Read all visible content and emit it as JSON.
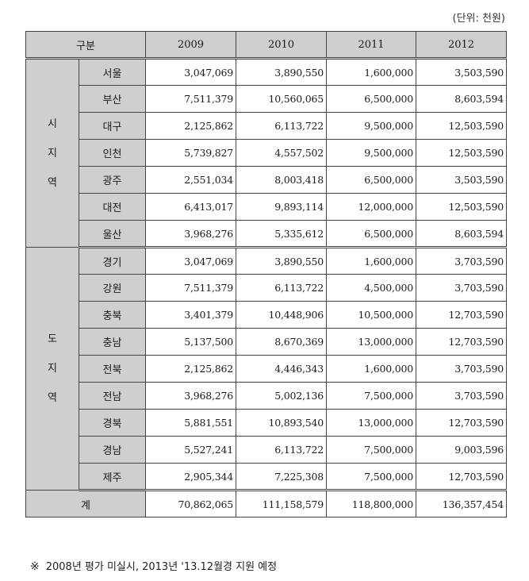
{
  "unit_label": "(단위: 천원)",
  "header": {
    "category": "구분",
    "years": [
      "2009",
      "2010",
      "2011",
      "2012"
    ]
  },
  "groups": [
    {
      "label": "시\n지\n역",
      "rows": [
        {
          "name": "서울",
          "values": [
            "3,047,069",
            "3,890,550",
            "1,600,000",
            "3,503,590"
          ]
        },
        {
          "name": "부산",
          "values": [
            "7,511,379",
            "10,560,065",
            "6,500,000",
            "8,603,594"
          ]
        },
        {
          "name": "대구",
          "values": [
            "2,125,862",
            "6,113,722",
            "9,500,000",
            "12,503,590"
          ]
        },
        {
          "name": "인천",
          "values": [
            "5,739,827",
            "4,557,502",
            "9,500,000",
            "12,503,590"
          ]
        },
        {
          "name": "광주",
          "values": [
            "2,551,034",
            "8,003,418",
            "6,500,000",
            "3,503,590"
          ]
        },
        {
          "name": "대전",
          "values": [
            "6,413,017",
            "9,893,114",
            "12,000,000",
            "12,503,590"
          ]
        },
        {
          "name": "울산",
          "values": [
            "3,968,276",
            "5,335,612",
            "6,500,000",
            "8,603,594"
          ]
        }
      ]
    },
    {
      "label": "도\n지\n역",
      "rows": [
        {
          "name": "경기",
          "values": [
            "3,047,069",
            "3,890,550",
            "1,600,000",
            "3,703,590"
          ]
        },
        {
          "name": "강원",
          "values": [
            "7,511,379",
            "6,113,722",
            "4,500,000",
            "3,703,590"
          ]
        },
        {
          "name": "충북",
          "values": [
            "3,401,379",
            "10,448,906",
            "10,500,000",
            "12,703,590"
          ]
        },
        {
          "name": "충남",
          "values": [
            "5,137,500",
            "8,670,369",
            "13,000,000",
            "12,703,590"
          ]
        },
        {
          "name": "전북",
          "values": [
            "2,125,862",
            "4,446,343",
            "1,600,000",
            "3,703,590"
          ]
        },
        {
          "name": "전남",
          "values": [
            "3,968,276",
            "5,002,136",
            "7,500,000",
            "3,703,590"
          ]
        },
        {
          "name": "경북",
          "values": [
            "5,881,551",
            "10,893,540",
            "13,000,000",
            "12,703,590"
          ]
        },
        {
          "name": "경남",
          "values": [
            "5,527,241",
            "6,113,722",
            "7,500,000",
            "9,003,596"
          ]
        },
        {
          "name": "제주",
          "values": [
            "2,905,344",
            "7,225,308",
            "7,500,000",
            "12,703,590"
          ]
        }
      ]
    }
  ],
  "total": {
    "label": "계",
    "values": [
      "70,862,065",
      "111,158,579",
      "118,800,000",
      "136,357,454"
    ]
  },
  "footnote": {
    "mark": "※",
    "text": "2008년 평가 미실시, 2013년 '13.12월경 지원 예정"
  }
}
